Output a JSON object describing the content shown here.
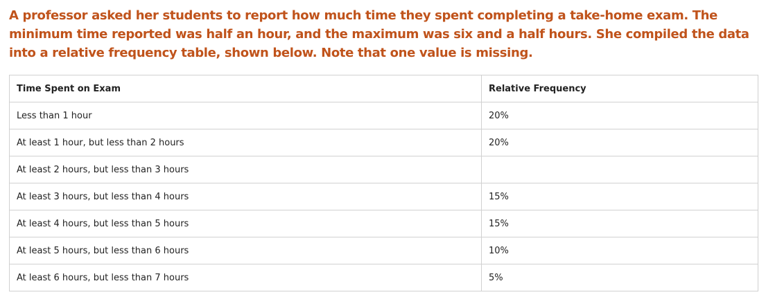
{
  "intro": "A professor asked her students to report how much time they spent completing a take-home exam.  The minimum time reported was half an hour, and the maximum was six and a half hours.  She compiled the data into a relative frequency table, shown below.  Note that one value is missing.",
  "table": {
    "headers": [
      "Time Spent on Exam",
      "Relative Frequency"
    ],
    "rows": [
      [
        "Less than 1 hour",
        "20%"
      ],
      [
        "At least 1 hour, but less than 2 hours",
        "20%"
      ],
      [
        "At least 2 hours, but less than 3 hours",
        ""
      ],
      [
        "At least 3 hours, but less than 4 hours",
        "15%"
      ],
      [
        "At least 4 hours, but less than 5 hours",
        "15%"
      ],
      [
        "At least 5 hours, but less than 6 hours",
        "10%"
      ],
      [
        "At least 6 hours, but less than 7 hours",
        "5%"
      ]
    ]
  }
}
